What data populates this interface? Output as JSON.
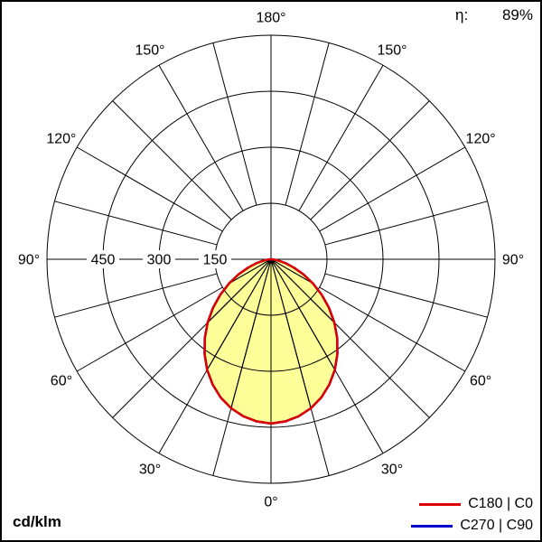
{
  "header": {
    "eta_label": "η:",
    "eta_value": "89%"
  },
  "footer": {
    "unit": "cd/klm"
  },
  "legend": {
    "items": [
      {
        "label": "C180 | C0",
        "color": "#dd0000"
      },
      {
        "label": "C270 | C90",
        "color": "#0000cc"
      }
    ]
  },
  "chart_data": {
    "type": "polar",
    "unit": "cd/klm",
    "efficiency_percent": 89,
    "angle_labels_deg": [
      0,
      30,
      60,
      90,
      120,
      150,
      180
    ],
    "grid_angle_step_deg": 15,
    "radial_ticks": [
      150,
      300,
      450
    ],
    "radial_max": 600,
    "grid_color": "#000000",
    "gamma_deg": [
      0,
      5,
      10,
      15,
      20,
      25,
      30,
      35,
      40,
      45,
      50,
      55,
      60,
      65,
      70,
      75,
      80,
      85,
      90
    ],
    "series": [
      {
        "name": "C180 | C0",
        "color": "#dd0000",
        "fill": "#ffff99",
        "values": [
          440,
          436,
          427,
          413,
          394,
          370,
          342,
          310,
          276,
          240,
          203,
          166,
          130,
          96,
          65,
          40,
          20,
          7,
          0
        ]
      },
      {
        "name": "C270 | C90",
        "color": "#0000cc",
        "fill": "none",
        "values": [
          440,
          436,
          427,
          413,
          394,
          370,
          342,
          310,
          276,
          240,
          203,
          166,
          130,
          96,
          65,
          40,
          20,
          7,
          0
        ]
      }
    ]
  }
}
